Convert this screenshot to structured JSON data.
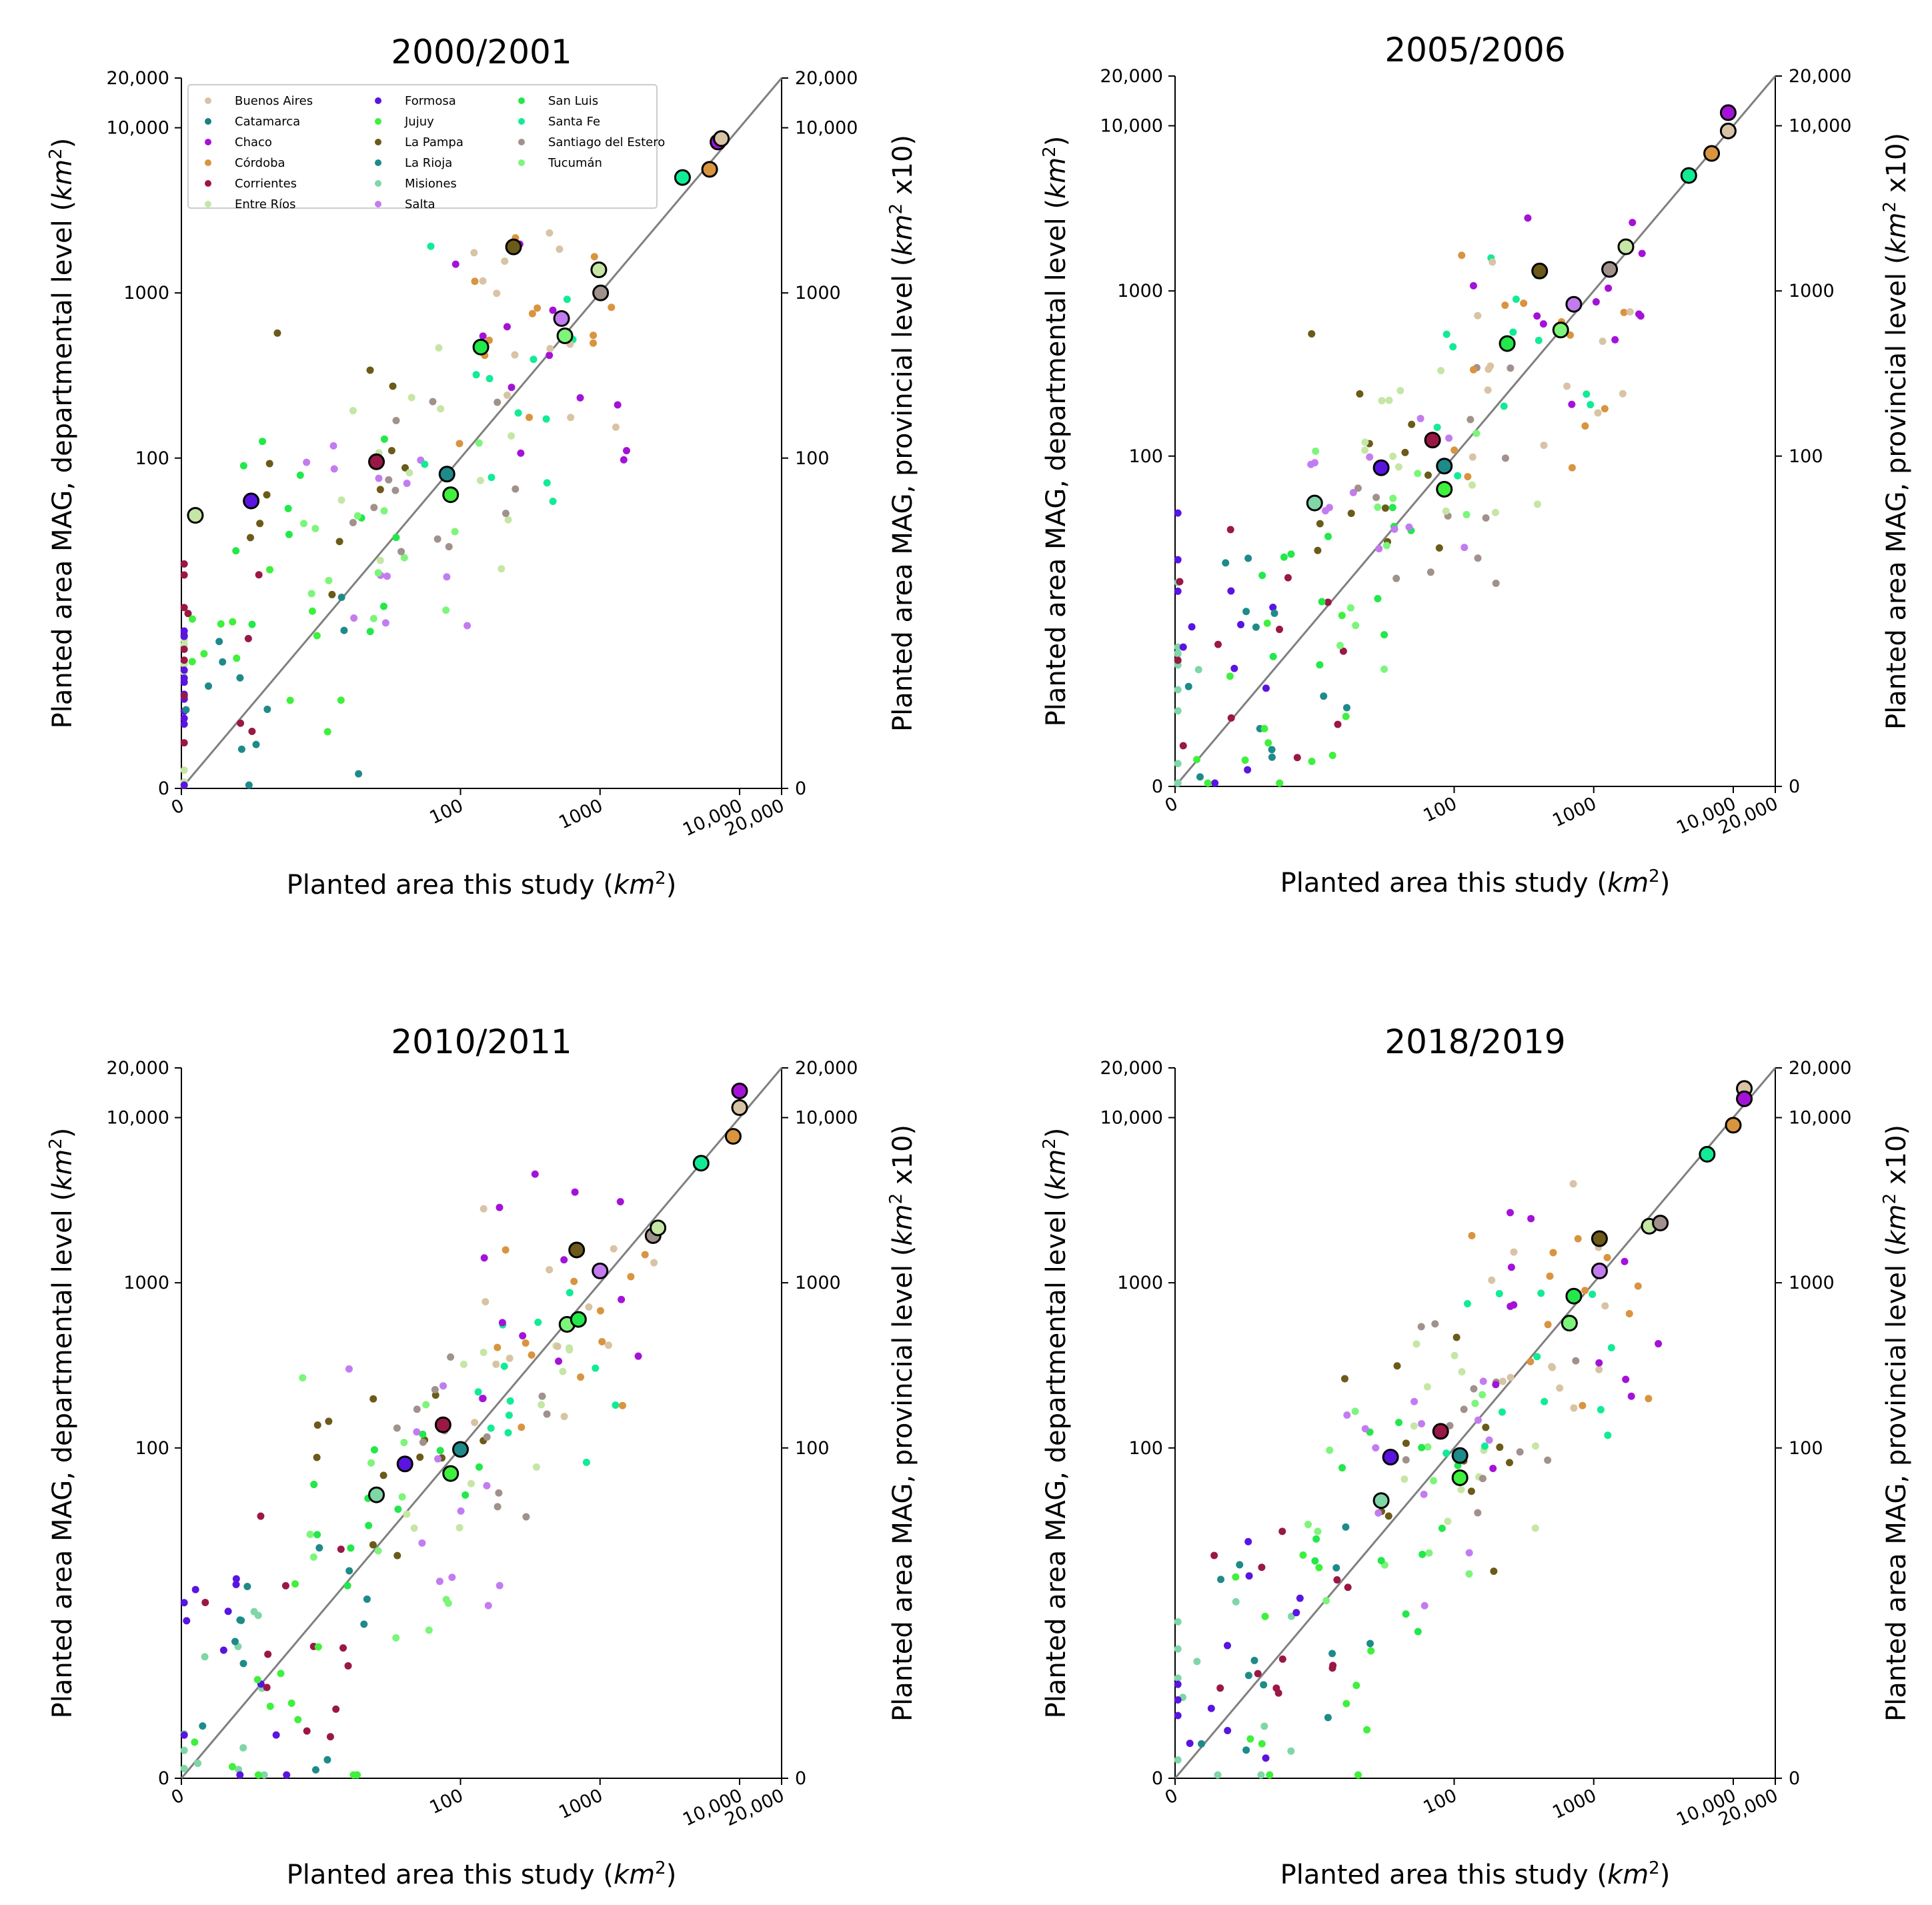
{
  "figure": {
    "x_label": "Planted area this study",
    "x_unit": "km",
    "y_label": "Planted area MAG, departmental level",
    "y_unit": "km",
    "y2_label": "Planted area MAG, provincial level",
    "y2_unit": "km",
    "y2_unit_suffix": "x10",
    "superscript": "2"
  },
  "axis_ticks": [
    {
      "value": 0,
      "label": "0"
    },
    {
      "value": 100,
      "label": "100"
    },
    {
      "value": 1000,
      "label": "1000"
    },
    {
      "value": 10000,
      "label": "10,000"
    },
    {
      "value": 20000,
      "label": "20,000"
    }
  ],
  "legend": [
    {
      "name": "Buenos Aires",
      "color": "#d8c3a5"
    },
    {
      "name": "Catamarca",
      "color": "#1a7f86"
    },
    {
      "name": "Chaco",
      "color": "#a412d8"
    },
    {
      "name": "Córdoba",
      "color": "#d9943f"
    },
    {
      "name": "Corrientes",
      "color": "#9a1845"
    },
    {
      "name": "Entre Ríos",
      "color": "#c5e6a5"
    },
    {
      "name": "Formosa",
      "color": "#5a14e0"
    },
    {
      "name": "Jujuy",
      "color": "#3ff03c"
    },
    {
      "name": "La Pampa",
      "color": "#6b5a19"
    },
    {
      "name": "La Rioja",
      "color": "#1f8a8a"
    },
    {
      "name": "Misiones",
      "color": "#7fd6a6"
    },
    {
      "name": "Salta",
      "color": "#c27cf0"
    },
    {
      "name": "San Luis",
      "color": "#22e84a"
    },
    {
      "name": "Santa Fe",
      "color": "#12eb95"
    },
    {
      "name": "Santiago del Estero",
      "color": "#a1918d"
    },
    {
      "name": "Tucumán",
      "color": "#7cf57a"
    }
  ],
  "chart_data": [
    {
      "type": "scatter",
      "title": "2000/2001",
      "xscale": "symlog",
      "yscale": "symlog",
      "xlim": [
        0,
        20000
      ],
      "ylim": [
        0,
        20000
      ],
      "reference_line": "1:1",
      "provincial_points": [
        {
          "province": "Entre Ríos",
          "x": 1,
          "y": 45
        },
        {
          "province": "Formosa",
          "x": 5,
          "y": 55
        },
        {
          "province": "Corrientes",
          "x": 25,
          "y": 95
        },
        {
          "province": "La Rioja",
          "x": 80,
          "y": 80
        },
        {
          "province": "Jujuy",
          "x": 85,
          "y": 60
        },
        {
          "province": "San Luis",
          "x": 140,
          "y": 470
        },
        {
          "province": "La Pampa",
          "x": 240,
          "y": 1900
        },
        {
          "province": "Salta",
          "x": 530,
          "y": 700
        },
        {
          "province": "Tucumán",
          "x": 560,
          "y": 550
        },
        {
          "province": "Entre Ríos",
          "x": 980,
          "y": 1380
        },
        {
          "province": "Santiago del Estero",
          "x": 1010,
          "y": 1000
        },
        {
          "province": "Santa Fe",
          "x": 3900,
          "y": 5000
        },
        {
          "province": "Córdoba",
          "x": 6100,
          "y": 5600
        },
        {
          "province": "Chaco",
          "x": 7000,
          "y": 8200
        },
        {
          "province": "Buenos Aires",
          "x": 7400,
          "y": 8600
        }
      ]
    },
    {
      "type": "scatter",
      "title": "2005/2006",
      "xscale": "symlog",
      "yscale": "symlog",
      "xlim": [
        0,
        20000
      ],
      "ylim": [
        0,
        20000
      ],
      "reference_line": "1:1",
      "provincial_points": [
        {
          "province": "Misiones",
          "x": 10,
          "y": 52
        },
        {
          "province": "Formosa",
          "x": 30,
          "y": 85
        },
        {
          "province": "Corrientes",
          "x": 70,
          "y": 125
        },
        {
          "province": "La Rioja",
          "x": 85,
          "y": 87
        },
        {
          "province": "Jujuy",
          "x": 85,
          "y": 63
        },
        {
          "province": "San Luis",
          "x": 240,
          "y": 480
        },
        {
          "province": "La Pampa",
          "x": 410,
          "y": 1320
        },
        {
          "province": "Tucumán",
          "x": 580,
          "y": 580
        },
        {
          "province": "Salta",
          "x": 720,
          "y": 830
        },
        {
          "province": "Santiago del Estero",
          "x": 1300,
          "y": 1350
        },
        {
          "province": "Entre Ríos",
          "x": 1700,
          "y": 1850
        },
        {
          "province": "Santa Fe",
          "x": 4800,
          "y": 5000
        },
        {
          "province": "Córdoba",
          "x": 7000,
          "y": 6800
        },
        {
          "province": "Buenos Aires",
          "x": 9200,
          "y": 9300
        },
        {
          "province": "Chaco",
          "x": 9200,
          "y": 12000
        }
      ]
    },
    {
      "type": "scatter",
      "title": "2010/2011",
      "xscale": "symlog",
      "yscale": "symlog",
      "xlim": [
        0,
        20000
      ],
      "ylim": [
        0,
        20000
      ],
      "reference_line": "1:1",
      "provincial_points": [
        {
          "province": "Misiones",
          "x": 25,
          "y": 52
        },
        {
          "province": "Formosa",
          "x": 40,
          "y": 80
        },
        {
          "province": "Corrientes",
          "x": 75,
          "y": 138
        },
        {
          "province": "Jujuy",
          "x": 85,
          "y": 70
        },
        {
          "province": "La Rioja",
          "x": 100,
          "y": 98
        },
        {
          "province": "Tucumán",
          "x": 580,
          "y": 560
        },
        {
          "province": "La Pampa",
          "x": 680,
          "y": 1580
        },
        {
          "province": "San Luis",
          "x": 700,
          "y": 600
        },
        {
          "province": "Salta",
          "x": 1000,
          "y": 1180
        },
        {
          "province": "Santiago del Estero",
          "x": 2400,
          "y": 1930
        },
        {
          "province": "Entre Ríos",
          "x": 2600,
          "y": 2150
        },
        {
          "province": "Santa Fe",
          "x": 5300,
          "y": 5300
        },
        {
          "province": "Córdoba",
          "x": 9000,
          "y": 7700
        },
        {
          "province": "Buenos Aires",
          "x": 10000,
          "y": 11500
        },
        {
          "province": "Chaco",
          "x": 10000,
          "y": 14500
        }
      ]
    },
    {
      "type": "scatter",
      "title": "2018/2019",
      "xscale": "symlog",
      "yscale": "symlog",
      "xlim": [
        0,
        20000
      ],
      "ylim": [
        0,
        20000
      ],
      "reference_line": "1:1",
      "provincial_points": [
        {
          "province": "Misiones",
          "x": 30,
          "y": 48
        },
        {
          "province": "Formosa",
          "x": 35,
          "y": 88
        },
        {
          "province": "Corrientes",
          "x": 80,
          "y": 126
        },
        {
          "province": "La Rioja",
          "x": 110,
          "y": 90
        },
        {
          "province": "Jujuy",
          "x": 110,
          "y": 66
        },
        {
          "province": "Tucumán",
          "x": 670,
          "y": 570
        },
        {
          "province": "San Luis",
          "x": 720,
          "y": 830
        },
        {
          "province": "La Pampa",
          "x": 1100,
          "y": 1850
        },
        {
          "province": "Salta",
          "x": 1100,
          "y": 1180
        },
        {
          "province": "Entre Ríos",
          "x": 2500,
          "y": 2200
        },
        {
          "province": "Santiago del Estero",
          "x": 3000,
          "y": 2300
        },
        {
          "province": "Santa Fe",
          "x": 6500,
          "y": 6000
        },
        {
          "province": "Córdoba",
          "x": 10000,
          "y": 9000
        },
        {
          "province": "Buenos Aires",
          "x": 12000,
          "y": 15000
        },
        {
          "province": "Chaco",
          "x": 12000,
          "y": 13000
        }
      ]
    }
  ]
}
